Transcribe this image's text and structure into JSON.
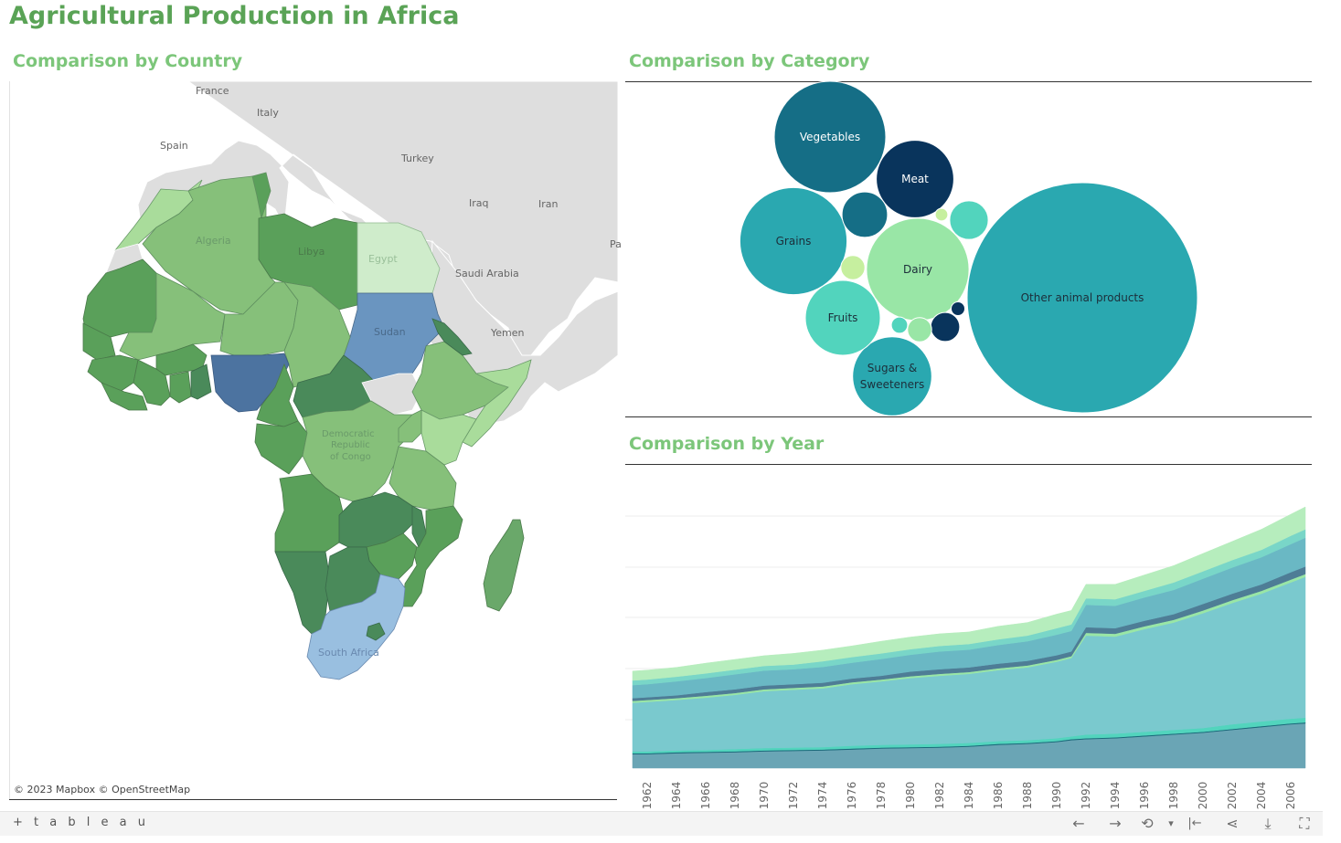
{
  "dashboard": {
    "title": "Agricultural Production in Africa"
  },
  "sheets": {
    "country": {
      "title": "Comparison by Country"
    },
    "category": {
      "title": "Comparison by Category"
    },
    "year": {
      "title": "Comparison by Year"
    }
  },
  "map": {
    "attribution": "© 2023 Mapbox  © OpenStreetMap",
    "labels": [
      {
        "text": "France",
        "key": "france"
      },
      {
        "text": "Italy",
        "key": "italy"
      },
      {
        "text": "Spain",
        "key": "spain"
      },
      {
        "text": "Turkey",
        "key": "turkey"
      },
      {
        "text": "Iraq",
        "key": "iraq"
      },
      {
        "text": "Iran",
        "key": "iran"
      },
      {
        "text": "Saudi Arabia",
        "key": "saudi"
      },
      {
        "text": "Yemen",
        "key": "yemen"
      },
      {
        "text": "Algeria",
        "key": "algeria"
      },
      {
        "text": "Libya",
        "key": "libya"
      },
      {
        "text": "Egypt",
        "key": "egypt"
      },
      {
        "text": "Sudan",
        "key": "sudan"
      },
      {
        "text": "Democratic",
        "key": "drc1"
      },
      {
        "text": "Republic",
        "key": "drc2"
      },
      {
        "text": "of Congo",
        "key": "drc3"
      },
      {
        "text": "South Africa",
        "key": "sa"
      },
      {
        "text": "Pa",
        "key": "pa"
      }
    ],
    "colors": {
      "light": "#a9dc9b",
      "mid": "#86c07a",
      "dark": "#5aa05a",
      "darkest": "#4a8a5a",
      "blue": "#6a95c0",
      "navy": "#4c73a0",
      "lightblue": "#99bfe0",
      "land": "#dcdcdc",
      "water": "#f2f2f2"
    }
  },
  "chart_data": [
    {
      "type": "bubble",
      "title": "Comparison by Category",
      "series": [
        {
          "name": "Other animal products",
          "value": 100,
          "color": "#2aa8b0"
        },
        {
          "name": "Vegetables",
          "value": 23.4,
          "color": "#156e86"
        },
        {
          "name": "Grains",
          "value": 21.6,
          "color": "#2aa8b0"
        },
        {
          "name": "Dairy",
          "value": 19.8,
          "color": "#99e6a6"
        },
        {
          "name": "Meat",
          "value": 11.3,
          "color": "#09345c"
        },
        {
          "name": "Sugars & Sweeteners",
          "value": 11.8,
          "color": "#2aa8b0"
        },
        {
          "name": "Fruits",
          "value": 10.6,
          "color": "#52d4bd"
        },
        {
          "name": "",
          "value": 3.9,
          "color": "#156e86"
        },
        {
          "name": "",
          "value": 2.8,
          "color": "#52d4bd"
        },
        {
          "name": "",
          "value": 1.6,
          "color": "#09345c"
        },
        {
          "name": "",
          "value": 1.1,
          "color": "#c6ef9f"
        },
        {
          "name": "",
          "value": 1.1,
          "color": "#99e6a6"
        },
        {
          "name": "",
          "value": 0.5,
          "color": "#52d4bd"
        },
        {
          "name": "",
          "value": 0.35,
          "color": "#09345c"
        },
        {
          "name": "",
          "value": 0.3,
          "color": "#c6ef9f"
        }
      ]
    },
    {
      "type": "area",
      "title": "Comparison by Year",
      "x": [
        1961,
        1962,
        1964,
        1966,
        1968,
        1970,
        1972,
        1974,
        1976,
        1978,
        1980,
        1982,
        1984,
        1986,
        1988,
        1990,
        1991,
        1992,
        1994,
        1996,
        1998,
        2000,
        2002,
        2004,
        2006,
        2007
      ],
      "xticks": [
        "1962",
        "1964",
        "1966",
        "1968",
        "1970",
        "1972",
        "1974",
        "1976",
        "1978",
        "1980",
        "1982",
        "1984",
        "1986",
        "1988",
        "1990",
        "1992",
        "1994",
        "1996",
        "1998",
        "2000",
        "2002",
        "2004",
        "2006"
      ],
      "ylim": [
        0,
        325
      ],
      "stacked": true,
      "series": [
        {
          "color": "#6aa5b5",
          "values": [
            15,
            15,
            16,
            16.5,
            17,
            18,
            18.5,
            19,
            20,
            21,
            21.5,
            22,
            23,
            25,
            26,
            28,
            30,
            31,
            32,
            34,
            36,
            38,
            41,
            44,
            47,
            48
          ]
        },
        {
          "color": "#1a6a7a",
          "values": [
            1,
            1,
            1,
            1,
            1,
            1,
            1,
            1,
            1,
            1,
            1,
            1,
            1,
            1,
            1,
            1,
            1,
            1,
            1,
            1,
            1,
            1,
            1,
            1,
            1,
            1
          ]
        },
        {
          "color": "#52d4bd",
          "values": [
            2,
            2,
            2,
            2,
            2.5,
            2.5,
            2.5,
            2.5,
            3,
            3,
            3,
            3,
            3,
            3,
            3,
            3,
            3,
            4,
            4,
            4,
            4,
            4,
            5,
            5,
            5,
            5
          ]
        },
        {
          "color": "#7ac9ce",
          "values": [
            52,
            53,
            54,
            56,
            58,
            61,
            62,
            63,
            66,
            68,
            71,
            73,
            74,
            76,
            78,
            82,
            84,
            106,
            104,
            110,
            115,
            123,
            130,
            137,
            146,
            151
          ]
        },
        {
          "color": "#99e6a6",
          "values": [
            2,
            2,
            2,
            2,
            2,
            2,
            2,
            2,
            2,
            2,
            2,
            2,
            2,
            2,
            2,
            2,
            2,
            3,
            3,
            3,
            3,
            3,
            3,
            3,
            3,
            3
          ]
        },
        {
          "color": "#4e7d96",
          "values": [
            3,
            3,
            3,
            4,
            4,
            4,
            4,
            4,
            4,
            4,
            5,
            5,
            5,
            5,
            5,
            5,
            5,
            6,
            6,
            6,
            6,
            7,
            7,
            7,
            8,
            8
          ]
        },
        {
          "color": "#6ab8c4",
          "values": [
            14,
            14,
            15,
            15,
            16,
            16,
            16,
            17,
            17,
            18,
            18,
            19,
            19,
            20,
            21,
            22,
            22,
            24,
            24,
            25,
            26,
            27,
            28,
            29,
            30,
            31
          ]
        },
        {
          "color": "#79d6c8",
          "values": [
            5,
            5,
            5,
            5,
            5,
            5,
            5,
            6,
            6,
            6,
            6,
            6,
            6,
            6,
            6,
            7,
            7,
            7,
            7,
            7,
            8,
            8,
            8,
            8,
            9,
            9
          ]
        },
        {
          "color": "#b6edbd",
          "values": [
            10,
            10,
            10,
            11,
            11,
            11,
            12,
            12,
            12,
            13,
            13,
            13,
            13,
            14,
            14,
            15,
            15,
            15,
            16,
            17,
            18,
            19,
            20,
            22,
            23,
            24
          ]
        }
      ]
    }
  ],
  "toolbar": {
    "logo": "+ t a b l e a u",
    "undo_icon": "←",
    "redo_icon": "→",
    "revert_icon": "⟲",
    "revert_menu_icon": "▾",
    "reset_icon": "|←",
    "share_icon": "⋖",
    "download_icon": "⤓",
    "fullscreen_icon": "⛶"
  }
}
